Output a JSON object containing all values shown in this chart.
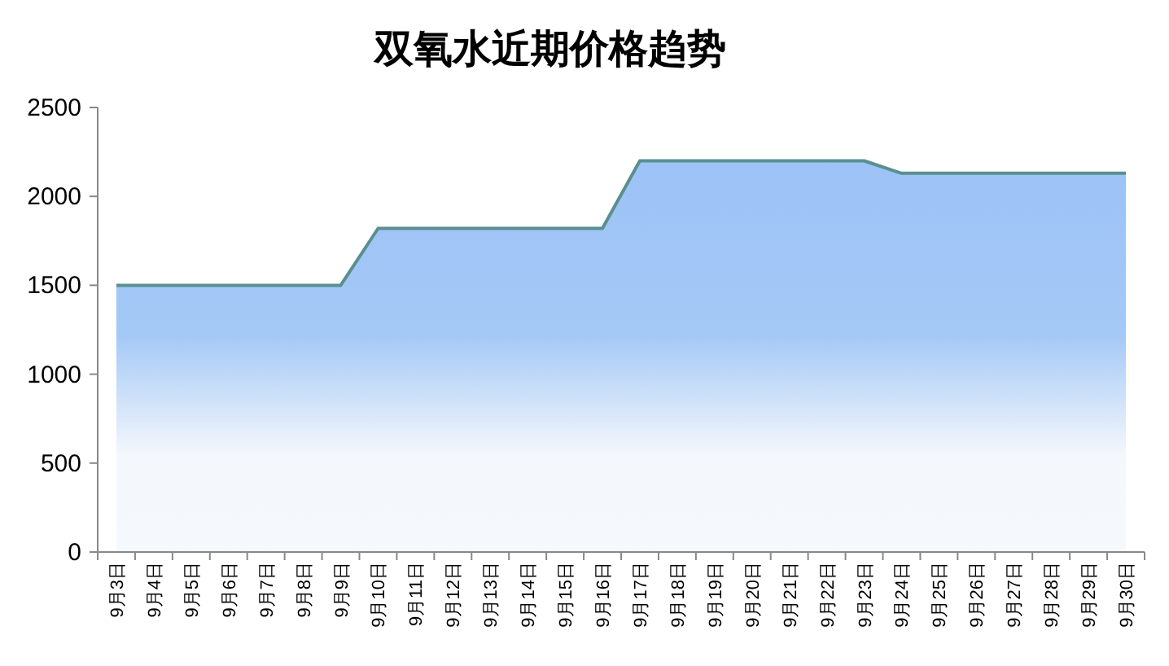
{
  "chart_data": {
    "type": "area",
    "title": "双氧水近期价格趋势",
    "categories": [
      "9月3日",
      "9月4日",
      "9月5日",
      "9月6日",
      "9月7日",
      "9月8日",
      "9月9日",
      "9月10日",
      "9月11日",
      "9月12日",
      "9月13日",
      "9月14日",
      "9月15日",
      "9月16日",
      "9月17日",
      "9月18日",
      "9月19日",
      "9月20日",
      "9月21日",
      "9月22日",
      "9月23日",
      "9月24日",
      "9月25日",
      "9月26日",
      "9月27日",
      "9月28日",
      "9月29日",
      "9月30日"
    ],
    "series": [
      {
        "color": "#5b8f8f",
        "values": [
          1500,
          1500,
          1500,
          1500,
          1500,
          1500,
          1500,
          1820,
          1820,
          1820,
          1820,
          1820,
          1820,
          1820,
          2200,
          2200,
          2200,
          2200,
          2200,
          2200,
          2200,
          2130,
          2130,
          2130,
          2130,
          2130,
          2130,
          2130
        ]
      }
    ],
    "ylim": [
      0,
      2500
    ],
    "yticks": [
      0,
      500,
      1000,
      1500,
      2000,
      2500
    ],
    "grid": false
  }
}
